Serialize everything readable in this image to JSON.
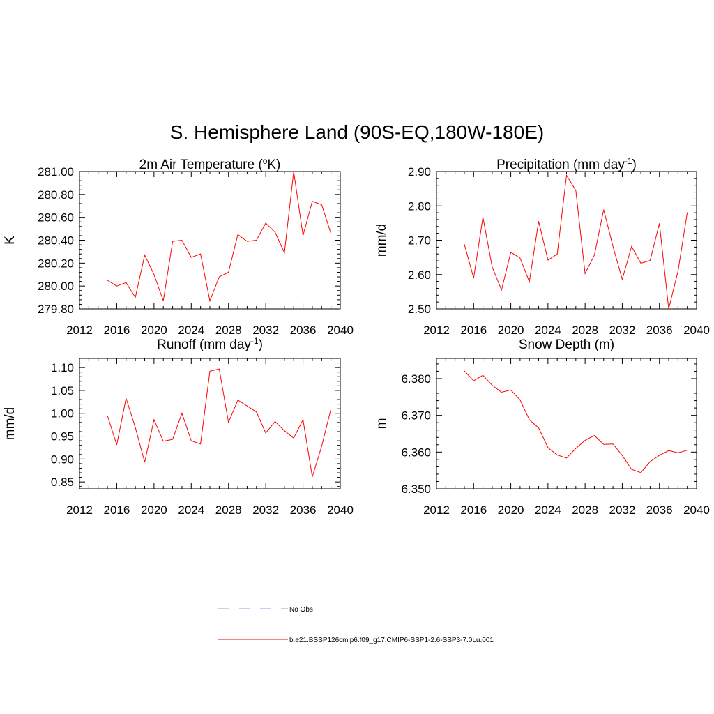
{
  "main_title": "S. Hemisphere Land (90S-EQ,180W-180E)",
  "colors": {
    "model_line": "#ff0000",
    "obs_line": "#9a9ae8",
    "axis": "#000000"
  },
  "legend": {
    "obs_label": "No Obs",
    "model_label": "b.e21.BSSP126cmip6.f09_g17.CMIP6-SSP1-2.6-SSP3-7.0Lu.001"
  },
  "chart_data": [
    {
      "type": "line",
      "title": "2m Air Temperature (",
      "title_sup": "o",
      "title_after": "K)",
      "ylabel": "K",
      "xlim": [
        2012,
        2040
      ],
      "ylim": [
        279.8,
        281.0
      ],
      "xticks": [
        "2012",
        "2016",
        "2020",
        "2024",
        "2028",
        "2032",
        "2036",
        "2040"
      ],
      "yticks": [
        "279.80",
        "280.00",
        "280.20",
        "280.40",
        "280.60",
        "280.80",
        "281.00"
      ],
      "grid": false,
      "series": [
        {
          "x": [
            2015,
            2016,
            2017,
            2018,
            2019,
            2020,
            2021,
            2022,
            2023,
            2024,
            2025,
            2026,
            2027,
            2028,
            2029,
            2030,
            2031,
            2032,
            2033,
            2034,
            2035,
            2036,
            2037,
            2038,
            2039
          ],
          "values": [
            280.05,
            280.0,
            280.03,
            279.9,
            280.27,
            280.1,
            279.87,
            280.39,
            280.4,
            280.25,
            280.28,
            279.87,
            280.08,
            280.12,
            280.45,
            280.39,
            280.4,
            280.55,
            280.47,
            280.29,
            281.0,
            280.44,
            280.74,
            280.71,
            280.46
          ]
        }
      ]
    },
    {
      "type": "line",
      "title": "Precipitation (mm day",
      "title_sup": "-1",
      "title_after": ")",
      "ylabel": "mm/d",
      "xlim": [
        2012,
        2040
      ],
      "ylim": [
        2.5,
        2.9
      ],
      "xticks": [
        "2012",
        "2016",
        "2020",
        "2024",
        "2028",
        "2032",
        "2036",
        "2040"
      ],
      "yticks": [
        "2.50",
        "2.60",
        "2.70",
        "2.80",
        "2.90"
      ],
      "grid": false,
      "series": [
        {
          "x": [
            2015,
            2016,
            2017,
            2018,
            2019,
            2020,
            2021,
            2022,
            2023,
            2024,
            2025,
            2026,
            2027,
            2028,
            2029,
            2030,
            2031,
            2032,
            2033,
            2034,
            2035,
            2036,
            2037,
            2038,
            2039
          ],
          "values": [
            2.688,
            2.59,
            2.767,
            2.622,
            2.555,
            2.665,
            2.648,
            2.579,
            2.755,
            2.642,
            2.66,
            2.889,
            2.845,
            2.603,
            2.657,
            2.789,
            2.682,
            2.586,
            2.682,
            2.633,
            2.641,
            2.749,
            2.5,
            2.61,
            2.781
          ]
        }
      ]
    },
    {
      "type": "line",
      "title": "Runoff (mm day",
      "title_sup": "-1",
      "title_after": ")",
      "ylabel": "mm/d",
      "xlim": [
        2012,
        2040
      ],
      "ylim": [
        0.835,
        1.12
      ],
      "xticks": [
        "2012",
        "2016",
        "2020",
        "2024",
        "2028",
        "2032",
        "2036",
        "2040"
      ],
      "yticks": [
        "0.85",
        "0.90",
        "0.95",
        "1.00",
        "1.05",
        "1.10"
      ],
      "grid": false,
      "series": [
        {
          "x": [
            2015,
            2016,
            2017,
            2018,
            2019,
            2020,
            2021,
            2022,
            2023,
            2024,
            2025,
            2026,
            2027,
            2028,
            2029,
            2030,
            2031,
            2032,
            2033,
            2034,
            2035,
            2036,
            2037,
            2038,
            2039
          ],
          "values": [
            0.995,
            0.931,
            1.033,
            0.969,
            0.893,
            0.986,
            0.939,
            0.943,
            1.0,
            0.94,
            0.933,
            1.092,
            1.097,
            0.98,
            1.029,
            1.016,
            1.003,
            0.957,
            0.982,
            0.962,
            0.946,
            0.986,
            0.861,
            0.928,
            1.009
          ]
        }
      ]
    },
    {
      "type": "line",
      "title": "Snow Depth (m)",
      "title_sup": "",
      "title_after": "",
      "ylabel": "m",
      "xlim": [
        2012,
        2040
      ],
      "ylim": [
        6.35,
        6.3855
      ],
      "xticks": [
        "2012",
        "2016",
        "2020",
        "2024",
        "2028",
        "2032",
        "2036",
        "2040"
      ],
      "yticks": [
        "6.350",
        "6.360",
        "6.370",
        "6.380"
      ],
      "grid": false,
      "series": [
        {
          "x": [
            2015,
            2016,
            2017,
            2018,
            2019,
            2020,
            2021,
            2022,
            2023,
            2024,
            2025,
            2026,
            2027,
            2028,
            2029,
            2030,
            2031,
            2032,
            2033,
            2034,
            2035,
            2036,
            2037,
            2038,
            2039
          ],
          "values": [
            6.3821,
            6.3794,
            6.3809,
            6.3782,
            6.3763,
            6.3769,
            6.3742,
            6.3688,
            6.3666,
            6.3612,
            6.3592,
            6.3584,
            6.361,
            6.3632,
            6.3645,
            6.3621,
            6.3622,
            6.3591,
            6.3553,
            6.3544,
            6.3574,
            6.3591,
            6.3604,
            6.3598,
            6.3605
          ]
        }
      ]
    }
  ]
}
